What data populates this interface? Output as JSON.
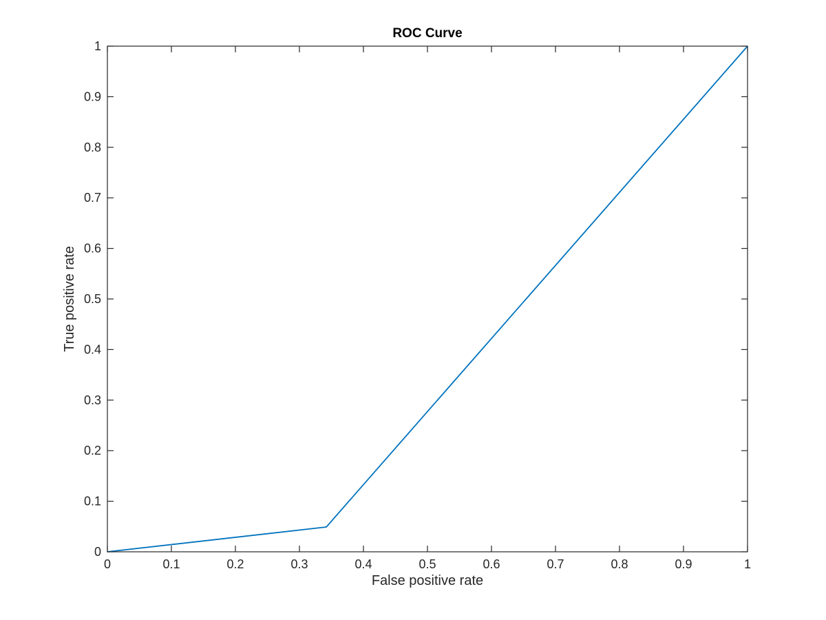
{
  "chart_data": {
    "type": "line",
    "title": "ROC Curve",
    "xlabel": "False positive rate",
    "ylabel": "True positive rate",
    "xlim": [
      0,
      1
    ],
    "ylim": [
      0,
      1
    ],
    "xticks": [
      "0",
      "0.1",
      "0.2",
      "0.3",
      "0.4",
      "0.5",
      "0.6",
      "0.7",
      "0.8",
      "0.9",
      "1"
    ],
    "yticks": [
      "0",
      "0.1",
      "0.2",
      "0.3",
      "0.4",
      "0.5",
      "0.6",
      "0.7",
      "0.8",
      "0.9",
      "1"
    ],
    "grid": false,
    "series": [
      {
        "color": "#0072bd",
        "points": [
          {
            "x": 0,
            "y": 0
          },
          {
            "x": 0.342,
            "y": 0.049
          },
          {
            "x": 1,
            "y": 1
          }
        ]
      }
    ]
  }
}
